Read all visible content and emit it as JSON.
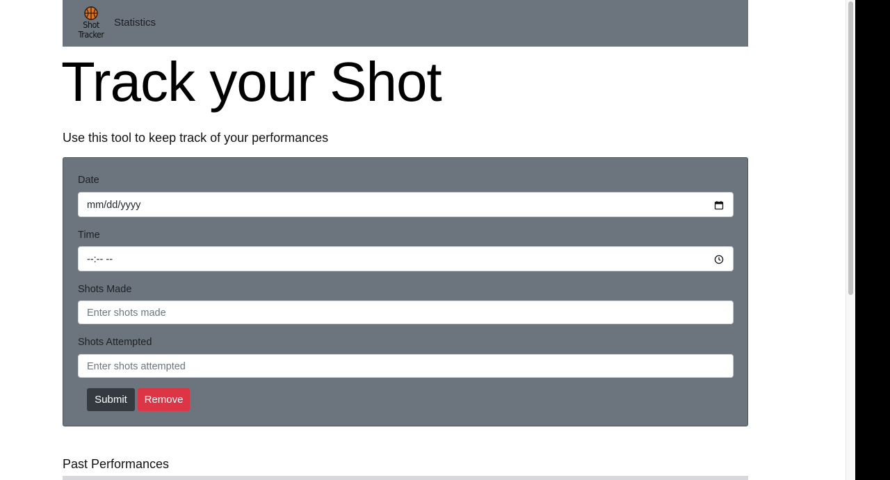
{
  "navbar": {
    "brand_line1": "Shot",
    "brand_line2": "Tracker",
    "brand_icon": "basketball-icon",
    "links": [
      {
        "label": "Statistics"
      }
    ]
  },
  "hero": {
    "title": "Track your Shot",
    "lead": "Use this tool to keep track of your performances"
  },
  "form": {
    "date": {
      "label": "Date",
      "value": "mm/dd/yyyy",
      "icon": "calendar-icon"
    },
    "time": {
      "label": "Time",
      "value": "--:-- --",
      "icon": "clock-icon"
    },
    "shots_made": {
      "label": "Shots Made",
      "placeholder": "Enter shots made"
    },
    "shots_attempted": {
      "label": "Shots Attempted",
      "placeholder": "Enter shots attempted"
    },
    "submit_label": "Submit",
    "remove_label": "Remove"
  },
  "past": {
    "title": "Past Performances"
  },
  "colors": {
    "navbar_bg": "#6c757d",
    "card_bg": "#6c757d",
    "submit_bg": "#343a40",
    "remove_bg": "#dc3545",
    "ball_orange": "#e2741d"
  }
}
